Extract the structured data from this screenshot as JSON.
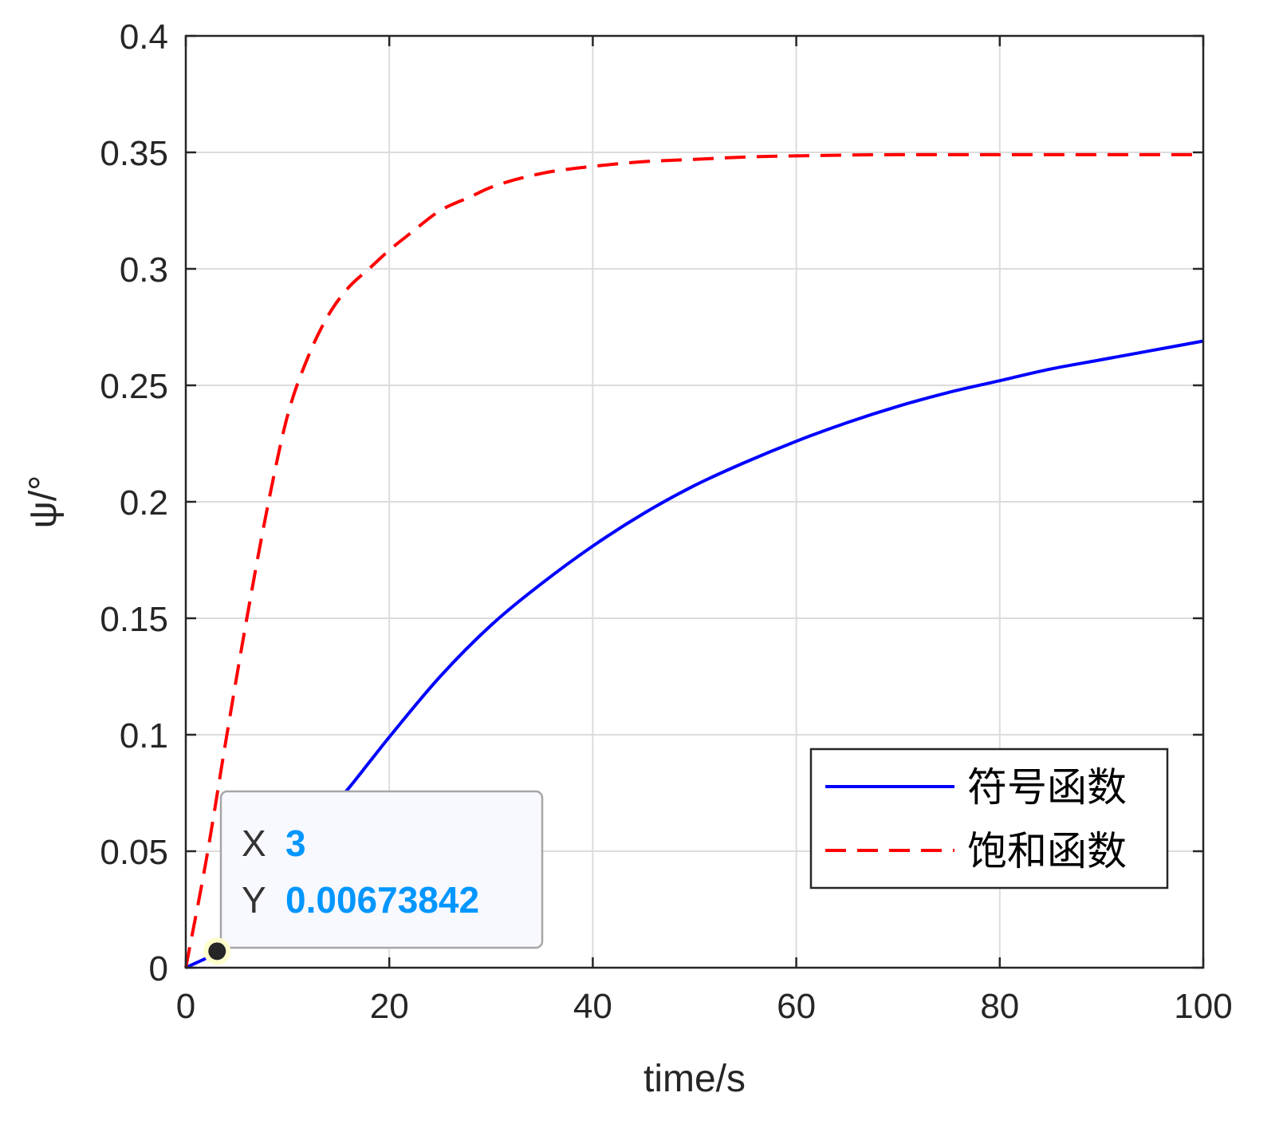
{
  "chart_data": {
    "type": "line",
    "title": "",
    "xlabel": "time/s",
    "ylabel": "ψ/°",
    "xlim": [
      0,
      100
    ],
    "ylim": [
      0,
      0.4
    ],
    "xticks": [
      0,
      20,
      40,
      60,
      80,
      100
    ],
    "xtick_labels": [
      "0",
      "20",
      "40",
      "60",
      "80",
      "100"
    ],
    "yticks": [
      0,
      0.05,
      0.1,
      0.15,
      0.2,
      0.25,
      0.3,
      0.35,
      0.4
    ],
    "ytick_labels": [
      "0",
      "0.05",
      "0.1",
      "0.15",
      "0.2",
      "0.25",
      "0.3",
      "0.35",
      "0.4"
    ],
    "grid": true,
    "legend_position": "bottom-right",
    "series": [
      {
        "name": "符号函数",
        "color": "#0000ff",
        "style": "solid",
        "x": [
          0,
          3,
          5,
          8,
          10,
          12,
          14,
          16,
          18,
          20,
          25,
          30,
          35,
          40,
          45,
          50,
          55,
          60,
          65,
          70,
          75,
          80,
          85,
          90,
          95,
          100
        ],
        "y": [
          0,
          0.00673842,
          0.015,
          0.03,
          0.042,
          0.055,
          0.067,
          0.077,
          0.088,
          0.099,
          0.125,
          0.147,
          0.165,
          0.181,
          0.195,
          0.207,
          0.217,
          0.226,
          0.234,
          0.241,
          0.247,
          0.252,
          0.257,
          0.261,
          0.265,
          0.269
        ]
      },
      {
        "name": "饱和函数",
        "color": "#ff0000",
        "style": "dashed",
        "x": [
          0,
          2,
          4,
          6,
          8,
          10,
          12,
          14,
          16,
          18,
          20,
          22,
          25,
          28,
          30,
          35,
          40,
          45,
          50,
          55,
          60,
          70,
          80,
          90,
          100
        ],
        "y": [
          0,
          0.046,
          0.099,
          0.15,
          0.197,
          0.237,
          0.262,
          0.28,
          0.292,
          0.3,
          0.308,
          0.315,
          0.325,
          0.331,
          0.335,
          0.341,
          0.344,
          0.346,
          0.347,
          0.348,
          0.3485,
          0.349,
          0.349,
          0.349,
          0.349
        ]
      }
    ],
    "annotations": [
      {
        "type": "datatip",
        "x_key": "X",
        "y_key": "Y",
        "x": 3,
        "y": 0.00673842,
        "x_text": "3",
        "y_text": "0.00673842"
      }
    ]
  }
}
